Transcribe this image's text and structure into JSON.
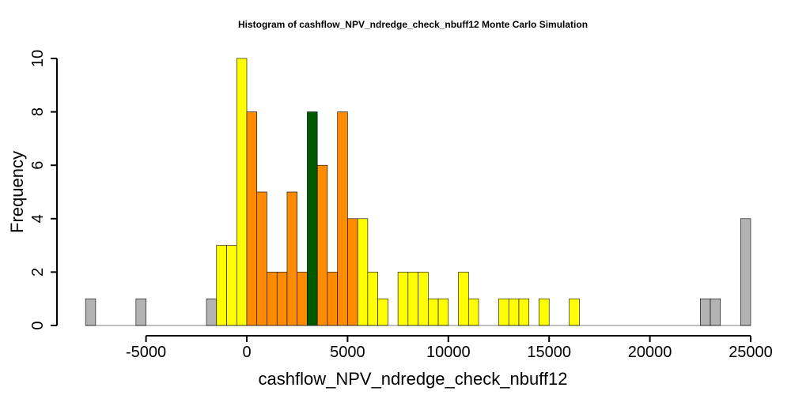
{
  "chart_data": {
    "type": "bar",
    "subtype": "histogram",
    "title": "Histogram of  cashflow_NPV_ndredge_check_nbuff12  Monte Carlo Simulation",
    "xlabel": "cashflow_NPV_ndredge_check_nbuff12",
    "ylabel": "Frequency",
    "xlim": [
      -8000,
      25000
    ],
    "ylim": [
      0,
      10
    ],
    "x_ticks": [
      -5000,
      0,
      5000,
      10000,
      15000,
      20000,
      25000
    ],
    "x_tick_labels": [
      "-5000",
      "0",
      "5000",
      "10000",
      "15000",
      "20000",
      "25000"
    ],
    "y_ticks": [
      0,
      2,
      4,
      6,
      8,
      10
    ],
    "y_tick_labels": [
      "0",
      "2",
      "4",
      "6",
      "8",
      "10"
    ],
    "bin_start": -8000,
    "bin_width": 500,
    "counts": [
      1,
      0,
      0,
      0,
      0,
      1,
      0,
      0,
      0,
      0,
      0,
      0,
      1,
      3,
      3,
      10,
      8,
      5,
      2,
      2,
      5,
      2,
      8,
      6,
      2,
      8,
      4,
      4,
      2,
      1,
      0,
      2,
      2,
      2,
      1,
      1,
      0,
      2,
      1,
      0,
      0,
      1,
      1,
      1,
      0,
      1,
      0,
      0,
      1,
      0,
      0,
      0,
      0,
      0,
      0,
      0,
      0,
      0,
      0,
      0,
      0,
      1,
      1,
      0,
      0,
      4
    ],
    "bin_color_groups": [
      "grey",
      "grey",
      "grey",
      "grey",
      "grey",
      "grey",
      "grey",
      "grey",
      "grey",
      "grey",
      "grey",
      "grey",
      "grey",
      "yellow",
      "yellow",
      "yellow",
      "orange",
      "orange",
      "orange",
      "orange",
      "orange",
      "orange",
      "green",
      "orange",
      "orange",
      "orange",
      "orange",
      "yellow",
      "yellow",
      "yellow",
      "yellow",
      "yellow",
      "yellow",
      "yellow",
      "yellow",
      "yellow",
      "yellow",
      "yellow",
      "yellow",
      "yellow",
      "yellow",
      "yellow",
      "yellow",
      "yellow",
      "yellow",
      "yellow",
      "yellow",
      "yellow",
      "yellow",
      "yellow",
      "yellow",
      "yellow",
      "yellow",
      "yellow",
      "yellow",
      "yellow",
      "yellow",
      "yellow",
      "yellow",
      "yellow",
      "grey",
      "grey",
      "grey",
      "grey",
      "grey",
      "grey"
    ],
    "colors": {
      "grey": "#b3b3b3",
      "yellow": "#ffff00",
      "orange": "#ff8c00",
      "green": "#005a00"
    }
  }
}
